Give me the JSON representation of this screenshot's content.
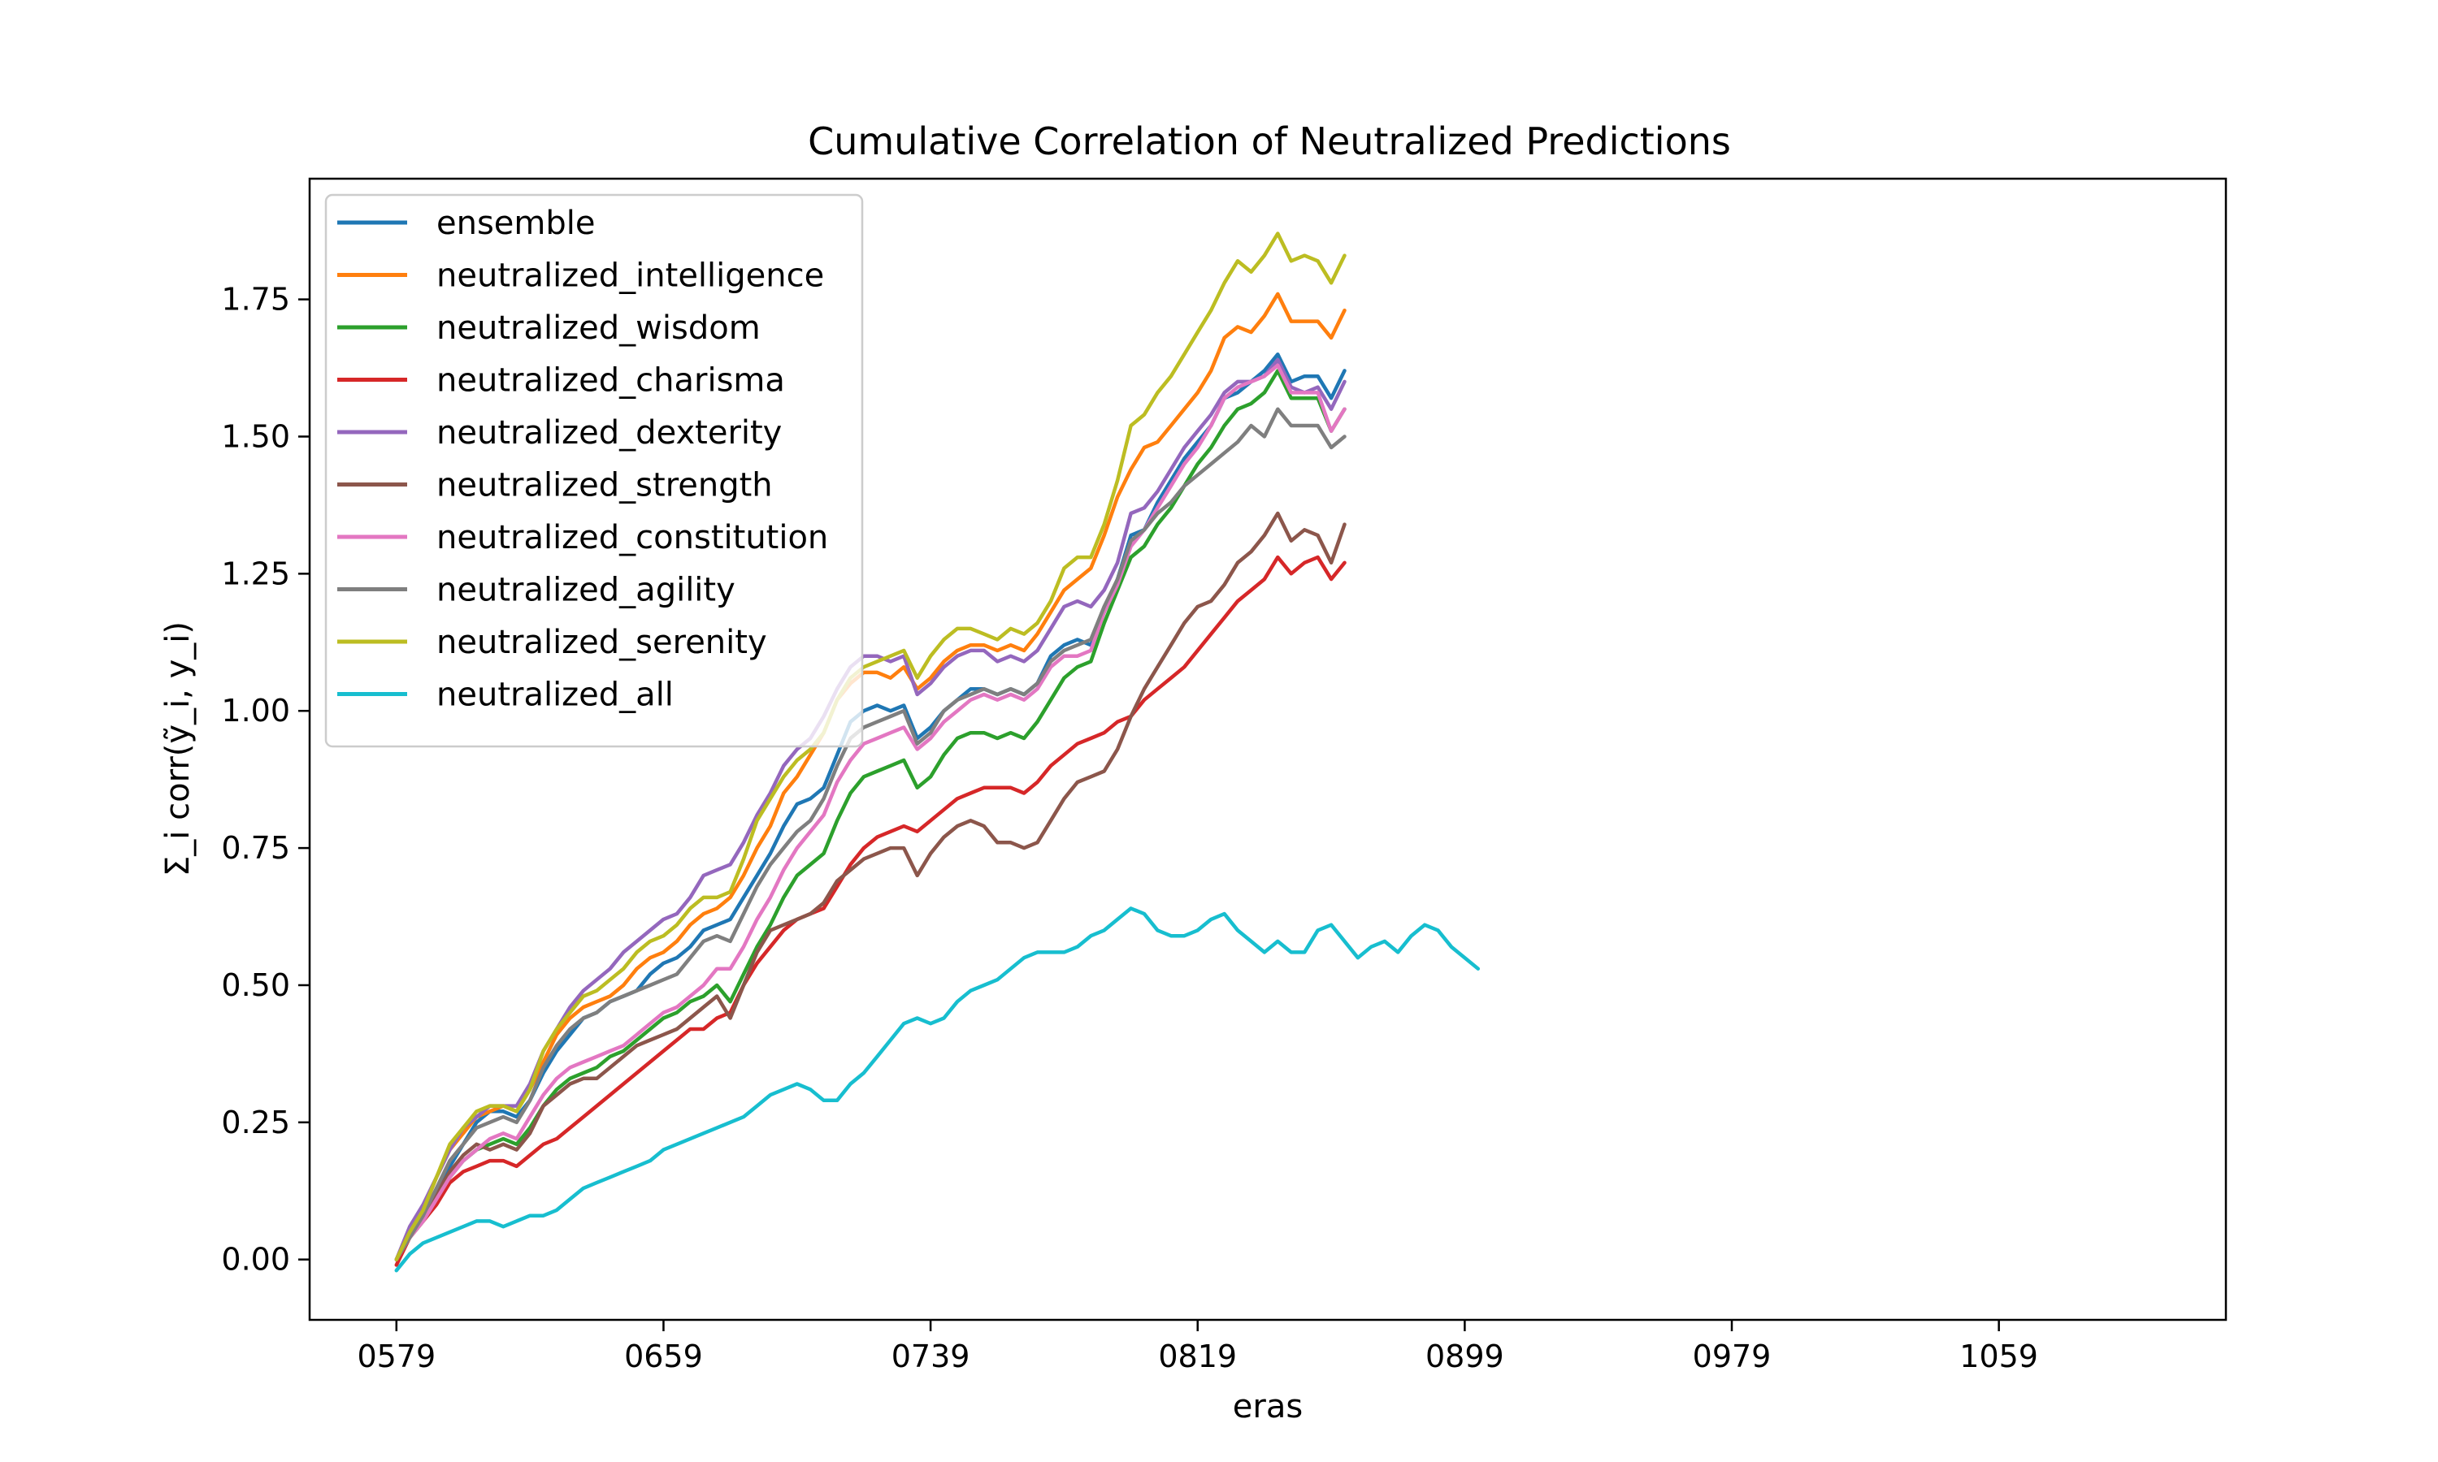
{
  "chart_data": {
    "type": "line",
    "title": "Cumulative Correlation of Neutralized Predictions",
    "xlabel": "eras",
    "ylabel": "Σ_i corr(ỹ_i, y_i)",
    "x_start": 579,
    "x_step": 4,
    "x_ticks": [
      "0579",
      "0659",
      "0739",
      "0819",
      "0899",
      "0979",
      "1059"
    ],
    "y_ticks": [
      "0.00",
      "0.25",
      "0.50",
      "0.75",
      "1.00",
      "1.25",
      "1.50",
      "1.75"
    ],
    "xlim": [
      553,
      1127
    ],
    "ylim": [
      -0.11,
      1.97
    ],
    "grid": false,
    "legend_position": "upper-left",
    "series": [
      {
        "name": "ensemble",
        "color": "#1f77b4",
        "values": [
          0.0,
          0.05,
          0.08,
          0.12,
          0.17,
          0.21,
          0.25,
          0.27,
          0.27,
          0.26,
          0.29,
          0.34,
          0.38,
          0.41,
          0.44,
          0.45,
          0.47,
          0.48,
          0.49,
          0.52,
          0.54,
          0.55,
          0.57,
          0.6,
          0.61,
          0.62,
          0.66,
          0.7,
          0.74,
          0.79,
          0.83,
          0.84,
          0.86,
          0.92,
          0.98,
          1.0,
          1.01,
          1.0,
          1.01,
          0.95,
          0.97,
          1.0,
          1.02,
          1.04,
          1.04,
          1.03,
          1.04,
          1.03,
          1.05,
          1.1,
          1.12,
          1.13,
          1.12,
          1.18,
          1.24,
          1.32,
          1.33,
          1.38,
          1.42,
          1.46,
          1.49,
          1.52,
          1.57,
          1.58,
          1.6,
          1.62,
          1.65,
          1.6,
          1.61,
          1.61,
          1.57,
          1.62
        ]
      },
      {
        "name": "neutralized_intelligence",
        "color": "#ff7f0e",
        "values": [
          0.0,
          0.05,
          0.09,
          0.15,
          0.2,
          0.23,
          0.26,
          0.27,
          0.28,
          0.27,
          0.31,
          0.36,
          0.41,
          0.44,
          0.46,
          0.47,
          0.48,
          0.5,
          0.53,
          0.55,
          0.56,
          0.58,
          0.61,
          0.63,
          0.64,
          0.66,
          0.7,
          0.75,
          0.79,
          0.85,
          0.88,
          0.92,
          0.96,
          1.02,
          1.05,
          1.07,
          1.07,
          1.06,
          1.08,
          1.04,
          1.06,
          1.09,
          1.11,
          1.12,
          1.12,
          1.11,
          1.12,
          1.11,
          1.14,
          1.18,
          1.22,
          1.24,
          1.26,
          1.32,
          1.39,
          1.44,
          1.48,
          1.49,
          1.52,
          1.55,
          1.58,
          1.62,
          1.68,
          1.7,
          1.69,
          1.72,
          1.76,
          1.71,
          1.71,
          1.71,
          1.68,
          1.73
        ]
      },
      {
        "name": "neutralized_wisdom",
        "color": "#2ca02c",
        "values": [
          0.0,
          0.04,
          0.07,
          0.11,
          0.15,
          0.18,
          0.2,
          0.21,
          0.22,
          0.21,
          0.24,
          0.28,
          0.31,
          0.33,
          0.34,
          0.35,
          0.37,
          0.38,
          0.4,
          0.42,
          0.44,
          0.45,
          0.47,
          0.48,
          0.5,
          0.47,
          0.52,
          0.57,
          0.61,
          0.66,
          0.7,
          0.72,
          0.74,
          0.8,
          0.85,
          0.88,
          0.89,
          0.9,
          0.91,
          0.86,
          0.88,
          0.92,
          0.95,
          0.96,
          0.96,
          0.95,
          0.96,
          0.95,
          0.98,
          1.02,
          1.06,
          1.08,
          1.09,
          1.16,
          1.22,
          1.28,
          1.3,
          1.34,
          1.37,
          1.41,
          1.45,
          1.48,
          1.52,
          1.55,
          1.56,
          1.58,
          1.62,
          1.57,
          1.57,
          1.57,
          1.51,
          1.55
        ]
      },
      {
        "name": "neutralized_charisma",
        "color": "#d62728",
        "values": [
          -0.01,
          0.04,
          0.07,
          0.1,
          0.14,
          0.16,
          0.17,
          0.18,
          0.18,
          0.17,
          0.19,
          0.21,
          0.22,
          0.24,
          0.26,
          0.28,
          0.3,
          0.32,
          0.34,
          0.36,
          0.38,
          0.4,
          0.42,
          0.42,
          0.44,
          0.45,
          0.5,
          0.54,
          0.57,
          0.6,
          0.62,
          0.63,
          0.64,
          0.68,
          0.72,
          0.75,
          0.77,
          0.78,
          0.79,
          0.78,
          0.8,
          0.82,
          0.84,
          0.85,
          0.86,
          0.86,
          0.86,
          0.85,
          0.87,
          0.9,
          0.92,
          0.94,
          0.95,
          0.96,
          0.98,
          0.99,
          1.02,
          1.04,
          1.06,
          1.08,
          1.11,
          1.14,
          1.17,
          1.2,
          1.22,
          1.24,
          1.28,
          1.25,
          1.27,
          1.28,
          1.24,
          1.27
        ]
      },
      {
        "name": "neutralized_dexterity",
        "color": "#9467bd",
        "values": [
          0.0,
          0.06,
          0.1,
          0.15,
          0.2,
          0.24,
          0.26,
          0.28,
          0.28,
          0.28,
          0.32,
          0.38,
          0.42,
          0.46,
          0.49,
          0.51,
          0.53,
          0.56,
          0.58,
          0.6,
          0.62,
          0.63,
          0.66,
          0.7,
          0.71,
          0.72,
          0.76,
          0.81,
          0.85,
          0.9,
          0.93,
          0.95,
          0.99,
          1.04,
          1.08,
          1.1,
          1.1,
          1.09,
          1.1,
          1.03,
          1.05,
          1.08,
          1.1,
          1.11,
          1.11,
          1.09,
          1.1,
          1.09,
          1.11,
          1.15,
          1.19,
          1.2,
          1.19,
          1.22,
          1.27,
          1.36,
          1.37,
          1.4,
          1.44,
          1.48,
          1.51,
          1.54,
          1.58,
          1.6,
          1.6,
          1.61,
          1.64,
          1.59,
          1.58,
          1.59,
          1.55,
          1.6
        ]
      },
      {
        "name": "neutralized_strength",
        "color": "#8c564b",
        "values": [
          0.0,
          0.05,
          0.08,
          0.12,
          0.16,
          0.19,
          0.21,
          0.2,
          0.21,
          0.2,
          0.23,
          0.28,
          0.3,
          0.32,
          0.33,
          0.33,
          0.35,
          0.37,
          0.39,
          0.4,
          0.41,
          0.42,
          0.44,
          0.46,
          0.48,
          0.44,
          0.5,
          0.56,
          0.6,
          0.61,
          0.62,
          0.63,
          0.65,
          0.69,
          0.71,
          0.73,
          0.74,
          0.75,
          0.75,
          0.7,
          0.74,
          0.77,
          0.79,
          0.8,
          0.79,
          0.76,
          0.76,
          0.75,
          0.76,
          0.8,
          0.84,
          0.87,
          0.88,
          0.89,
          0.93,
          0.99,
          1.04,
          1.08,
          1.12,
          1.16,
          1.19,
          1.2,
          1.23,
          1.27,
          1.29,
          1.32,
          1.36,
          1.31,
          1.33,
          1.32,
          1.27,
          1.34
        ]
      },
      {
        "name": "neutralized_constitution",
        "color": "#e377c2",
        "values": [
          0.0,
          0.04,
          0.07,
          0.11,
          0.15,
          0.18,
          0.2,
          0.22,
          0.23,
          0.22,
          0.26,
          0.3,
          0.33,
          0.35,
          0.36,
          0.37,
          0.38,
          0.39,
          0.41,
          0.43,
          0.45,
          0.46,
          0.48,
          0.5,
          0.53,
          0.53,
          0.57,
          0.62,
          0.66,
          0.71,
          0.75,
          0.78,
          0.81,
          0.87,
          0.91,
          0.94,
          0.95,
          0.96,
          0.97,
          0.93,
          0.95,
          0.98,
          1.0,
          1.02,
          1.03,
          1.02,
          1.03,
          1.02,
          1.04,
          1.08,
          1.1,
          1.1,
          1.11,
          1.18,
          1.23,
          1.3,
          1.33,
          1.37,
          1.41,
          1.45,
          1.48,
          1.52,
          1.57,
          1.59,
          1.6,
          1.61,
          1.63,
          1.58,
          1.58,
          1.58,
          1.51,
          1.55
        ]
      },
      {
        "name": "neutralized_agility",
        "color": "#7f7f7f",
        "values": [
          0.0,
          0.04,
          0.08,
          0.13,
          0.18,
          0.21,
          0.24,
          0.25,
          0.26,
          0.25,
          0.29,
          0.35,
          0.39,
          0.42,
          0.44,
          0.45,
          0.47,
          0.48,
          0.49,
          0.5,
          0.51,
          0.52,
          0.55,
          0.58,
          0.59,
          0.58,
          0.63,
          0.68,
          0.72,
          0.75,
          0.78,
          0.8,
          0.84,
          0.9,
          0.95,
          0.97,
          0.98,
          0.99,
          1.0,
          0.94,
          0.96,
          1.0,
          1.02,
          1.03,
          1.04,
          1.03,
          1.04,
          1.03,
          1.05,
          1.09,
          1.11,
          1.12,
          1.13,
          1.19,
          1.24,
          1.31,
          1.33,
          1.36,
          1.38,
          1.41,
          1.43,
          1.45,
          1.47,
          1.49,
          1.52,
          1.5,
          1.55,
          1.52,
          1.52,
          1.52,
          1.48,
          1.5
        ]
      },
      {
        "name": "neutralized_serenity",
        "color": "#bcbd22",
        "values": [
          0.0,
          0.05,
          0.09,
          0.15,
          0.21,
          0.24,
          0.27,
          0.28,
          0.28,
          0.27,
          0.31,
          0.38,
          0.42,
          0.45,
          0.48,
          0.49,
          0.51,
          0.53,
          0.56,
          0.58,
          0.59,
          0.61,
          0.64,
          0.66,
          0.66,
          0.67,
          0.73,
          0.8,
          0.84,
          0.88,
          0.91,
          0.93,
          0.96,
          1.02,
          1.06,
          1.08,
          1.09,
          1.1,
          1.11,
          1.06,
          1.1,
          1.13,
          1.15,
          1.15,
          1.14,
          1.13,
          1.15,
          1.14,
          1.16,
          1.2,
          1.26,
          1.28,
          1.28,
          1.34,
          1.42,
          1.52,
          1.54,
          1.58,
          1.61,
          1.65,
          1.69,
          1.73,
          1.78,
          1.82,
          1.8,
          1.83,
          1.87,
          1.82,
          1.83,
          1.82,
          1.78,
          1.83
        ]
      },
      {
        "name": "neutralized_all",
        "color": "#17becf",
        "values": [
          -0.02,
          0.01,
          0.03,
          0.04,
          0.05,
          0.06,
          0.07,
          0.07,
          0.06,
          0.07,
          0.08,
          0.08,
          0.09,
          0.11,
          0.13,
          0.14,
          0.15,
          0.16,
          0.17,
          0.18,
          0.2,
          0.21,
          0.22,
          0.23,
          0.24,
          0.25,
          0.26,
          0.28,
          0.3,
          0.31,
          0.32,
          0.31,
          0.29,
          0.29,
          0.32,
          0.34,
          0.37,
          0.4,
          0.43,
          0.44,
          0.43,
          0.44,
          0.47,
          0.49,
          0.5,
          0.51,
          0.53,
          0.55,
          0.56,
          0.56,
          0.56,
          0.57,
          0.59,
          0.6,
          0.62,
          0.64,
          0.63,
          0.6,
          0.59,
          0.59,
          0.6,
          0.62,
          0.63,
          0.6,
          0.58,
          0.56,
          0.58,
          0.56,
          0.56,
          0.6,
          0.61,
          0.58,
          0.55,
          0.57,
          0.58,
          0.56,
          0.59,
          0.61,
          0.6,
          0.57,
          0.55,
          0.53
        ]
      }
    ]
  }
}
